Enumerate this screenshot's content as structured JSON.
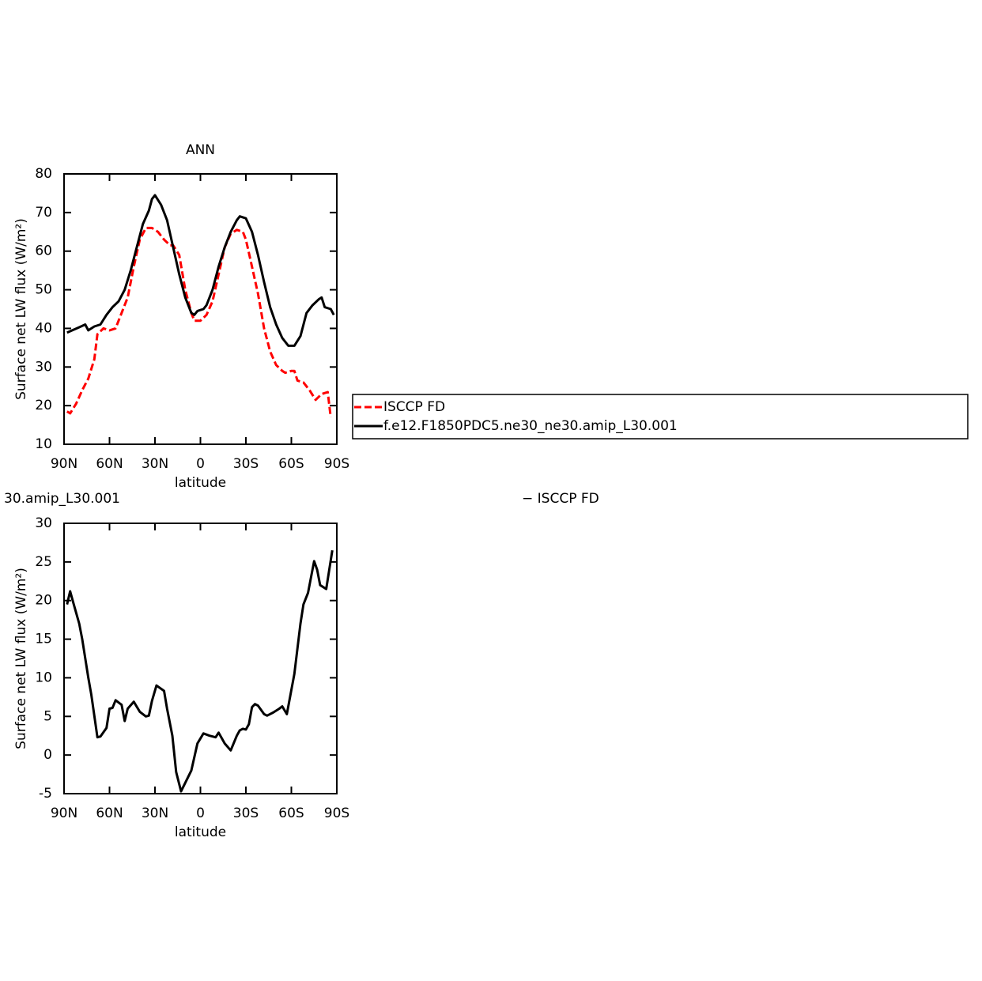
{
  "chart_data": [
    {
      "type": "line",
      "title": "ANN",
      "xlabel": "latitude",
      "ylabel": "Surface net LW flux (W/m²)",
      "xlim": [
        90,
        -90
      ],
      "xticks": [
        {
          "value": 90,
          "label": "90N"
        },
        {
          "value": 60,
          "label": "60N"
        },
        {
          "value": 30,
          "label": "30N"
        },
        0,
        {
          "value": -30,
          "label": "30S"
        },
        {
          "value": -60,
          "label": "60S"
        },
        {
          "value": -90,
          "label": "90S"
        }
      ],
      "ylim": [
        10,
        80
      ],
      "yticks": [
        10,
        20,
        30,
        40,
        50,
        60,
        70,
        80
      ],
      "legend": "right",
      "series": [
        {
          "name": "ISCCP FD",
          "color": "#ff0000",
          "style": "dashed",
          "x": [
            88,
            86,
            82,
            78,
            74,
            70,
            68,
            64,
            60,
            56,
            52,
            48,
            44,
            40,
            36,
            32,
            28,
            24,
            20,
            18,
            14,
            10,
            6,
            4,
            0,
            -4,
            -8,
            -12,
            -16,
            -20,
            -24,
            -28,
            -30,
            -34,
            -38,
            -42,
            -46,
            -50,
            -54,
            -56,
            -60,
            -62,
            -64,
            -68,
            -72,
            -76,
            -80,
            -84,
            -86
          ],
          "values": [
            18.5,
            18,
            20.5,
            24,
            27,
            32,
            38.5,
            40,
            39.5,
            40,
            44,
            48,
            56,
            63,
            66,
            66,
            65,
            63,
            61.5,
            61.5,
            59,
            50,
            44,
            42,
            42,
            43.5,
            47,
            54,
            61,
            64.5,
            65.5,
            65,
            63,
            56,
            49,
            40,
            34,
            30.5,
            29,
            28.5,
            29,
            29,
            26.5,
            26,
            24,
            21.5,
            23,
            23.5,
            17
          ]
        },
        {
          "name": "f.e12.F1850PDC5.ne30_ne30.amip_L30.001",
          "color": "#000000",
          "style": "solid",
          "x": [
            88,
            84,
            80,
            76,
            74,
            70,
            66,
            62,
            58,
            54,
            50,
            46,
            42,
            38,
            34,
            32,
            30,
            26,
            22,
            18,
            14,
            10,
            6,
            4,
            2,
            -2,
            -4,
            -8,
            -12,
            -16,
            -20,
            -24,
            -26,
            -30,
            -34,
            -38,
            -42,
            -46,
            -50,
            -54,
            -58,
            -62,
            -66,
            -70,
            -74,
            -78,
            -80,
            -82,
            -86,
            -88
          ],
          "values": [
            38.9,
            39.6,
            40.3,
            41,
            39.5,
            40.5,
            41,
            43.5,
            45.5,
            47,
            50,
            55,
            61,
            67,
            70.5,
            73.5,
            74.5,
            72,
            68,
            61,
            54,
            48,
            44,
            43.5,
            44.5,
            45,
            46,
            50,
            56,
            61,
            65,
            68,
            69,
            68.5,
            65,
            59,
            52,
            45.5,
            41,
            37.5,
            35.5,
            35.5,
            38,
            44,
            46,
            47.5,
            48,
            45.5,
            45,
            43.5
          ]
        }
      ]
    },
    {
      "type": "line",
      "title": [
        "30.amip_L30.001",
        "− ISCCP FD"
      ],
      "xlabel": "latitude",
      "ylabel": "Surface net LW flux (W/m²)",
      "xlim": [
        90,
        -90
      ],
      "xticks": [
        {
          "value": 90,
          "label": "90N"
        },
        {
          "value": 60,
          "label": "60N"
        },
        {
          "value": 30,
          "label": "30N"
        },
        0,
        {
          "value": -30,
          "label": "30S"
        },
        {
          "value": -60,
          "label": "60S"
        },
        {
          "value": -90,
          "label": "90S"
        }
      ],
      "ylim": [
        -5,
        30
      ],
      "yticks": [
        -5,
        0,
        5,
        10,
        15,
        20,
        25,
        30
      ],
      "series": [
        {
          "color": "#000000",
          "style": "solid",
          "x": [
            88,
            86,
            84,
            80,
            78,
            74,
            72,
            68,
            66,
            62,
            60,
            58,
            56,
            52,
            50,
            48,
            44,
            40,
            36,
            34,
            32,
            29,
            24,
            22,
            18.5,
            16,
            12.8,
            6,
            2,
            -2,
            -6,
            -10,
            -12,
            -16,
            -20,
            -24,
            -26,
            -28,
            -30,
            -32,
            -34,
            -36,
            -38,
            -42,
            -44,
            -48,
            -52,
            -54,
            -57,
            -62,
            -66,
            -68,
            -71,
            -75,
            -77,
            -79,
            -83,
            -87
          ],
          "values": [
            19.5,
            21.2,
            19.8,
            17,
            15,
            10,
            7.8,
            2.3,
            2.4,
            3.5,
            6,
            6.1,
            7.1,
            6.5,
            4.4,
            6,
            6.9,
            5.6,
            5,
            5.1,
            7,
            9,
            8.3,
            6,
            2.5,
            -2.2,
            -4.7,
            -2,
            1.5,
            2.8,
            2.5,
            2.3,
            2.9,
            1.5,
            0.6,
            2.5,
            3.2,
            3.4,
            3.3,
            4,
            6.2,
            6.6,
            6.4,
            5.3,
            5.1,
            5.5,
            6,
            6.3,
            5.3,
            10.5,
            17,
            19.5,
            21,
            25.1,
            24,
            22,
            21.5,
            26.5
          ]
        }
      ]
    }
  ]
}
